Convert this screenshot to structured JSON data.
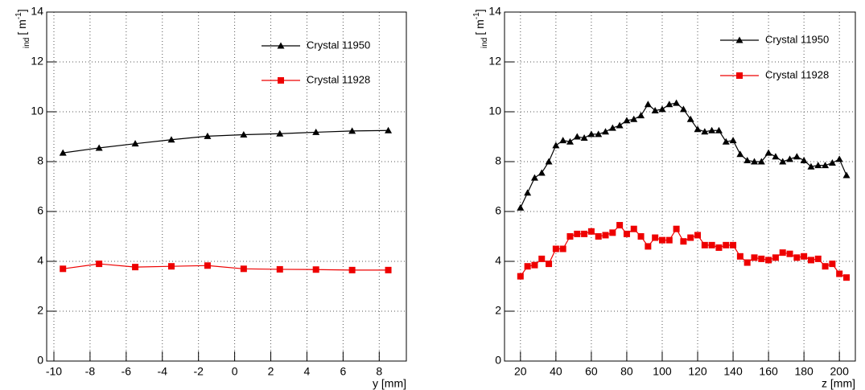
{
  "chart_data": [
    {
      "type": "line",
      "xlabel": "y [mm]",
      "ylabel": {
        "sub": "ind",
        "main": "[ m",
        "sup": "-1",
        "close": "]"
      },
      "x": [
        -9.5,
        -7.5,
        -5.5,
        -3.5,
        -1.5,
        0.5,
        2.5,
        4.5,
        6.5,
        8.5
      ],
      "series": [
        {
          "name": "Crystal 11950",
          "color": "#000000",
          "marker": "triangle",
          "values": [
            8.35,
            8.55,
            8.72,
            8.88,
            9.02,
            9.08,
            9.12,
            9.18,
            9.23,
            9.25
          ]
        },
        {
          "name": "Crystal 11928",
          "color": "#ee0000",
          "marker": "square",
          "values": [
            3.7,
            3.9,
            3.77,
            3.8,
            3.83,
            3.7,
            3.68,
            3.67,
            3.65,
            3.65
          ]
        }
      ],
      "xlim": [
        -10.4,
        9.5
      ],
      "ylim": [
        0,
        14
      ],
      "xticks": [
        -10,
        -8,
        -6,
        -4,
        -2,
        0,
        2,
        4,
        6,
        8
      ],
      "yticks": [
        0,
        2,
        4,
        6,
        8,
        10,
        12,
        14
      ],
      "grid": true
    },
    {
      "type": "line",
      "xlabel": "z [mm]",
      "ylabel": {
        "sub": "ind",
        "main": "[ m",
        "sup": "-1",
        "close": "]"
      },
      "x": [
        20,
        24,
        28,
        32,
        36,
        40,
        44,
        48,
        52,
        56,
        60,
        64,
        68,
        72,
        76,
        80,
        84,
        88,
        92,
        96,
        100,
        104,
        108,
        112,
        116,
        120,
        124,
        128,
        132,
        136,
        140,
        144,
        148,
        152,
        156,
        160,
        164,
        168,
        172,
        176,
        180,
        184,
        188,
        192,
        196,
        200,
        204
      ],
      "series": [
        {
          "name": "Crystal 11950",
          "color": "#000000",
          "marker": "triangle",
          "values": [
            6.15,
            6.75,
            7.35,
            7.55,
            8.0,
            8.65,
            8.85,
            8.8,
            9.0,
            8.95,
            9.1,
            9.1,
            9.2,
            9.35,
            9.45,
            9.65,
            9.7,
            9.85,
            10.3,
            10.05,
            10.1,
            10.3,
            10.35,
            10.1,
            9.7,
            9.3,
            9.2,
            9.25,
            9.25,
            8.8,
            8.85,
            8.3,
            8.05,
            8.0,
            8.0,
            8.35,
            8.2,
            8.0,
            8.1,
            8.2,
            8.05,
            7.8,
            7.85,
            7.85,
            7.95,
            8.1,
            7.45
          ]
        },
        {
          "name": "Crystal 11928",
          "color": "#ee0000",
          "marker": "square",
          "values": [
            3.4,
            3.8,
            3.85,
            4.1,
            3.9,
            4.5,
            4.5,
            5.0,
            5.1,
            5.1,
            5.2,
            5.0,
            5.05,
            5.15,
            5.45,
            5.1,
            5.3,
            5.0,
            4.6,
            4.95,
            4.85,
            4.85,
            5.3,
            4.8,
            4.95,
            5.05,
            4.65,
            4.65,
            4.55,
            4.65,
            4.65,
            4.2,
            3.95,
            4.15,
            4.1,
            4.05,
            4.15,
            4.35,
            4.3,
            4.15,
            4.2,
            4.05,
            4.1,
            3.8,
            3.9,
            3.5,
            3.35
          ]
        }
      ],
      "xlim": [
        11,
        209
      ],
      "ylim": [
        0,
        14
      ],
      "xticks": [
        20,
        40,
        60,
        80,
        100,
        120,
        140,
        160,
        180,
        200
      ],
      "yticks": [
        0,
        2,
        4,
        6,
        8,
        10,
        12,
        14
      ],
      "grid": true
    }
  ]
}
